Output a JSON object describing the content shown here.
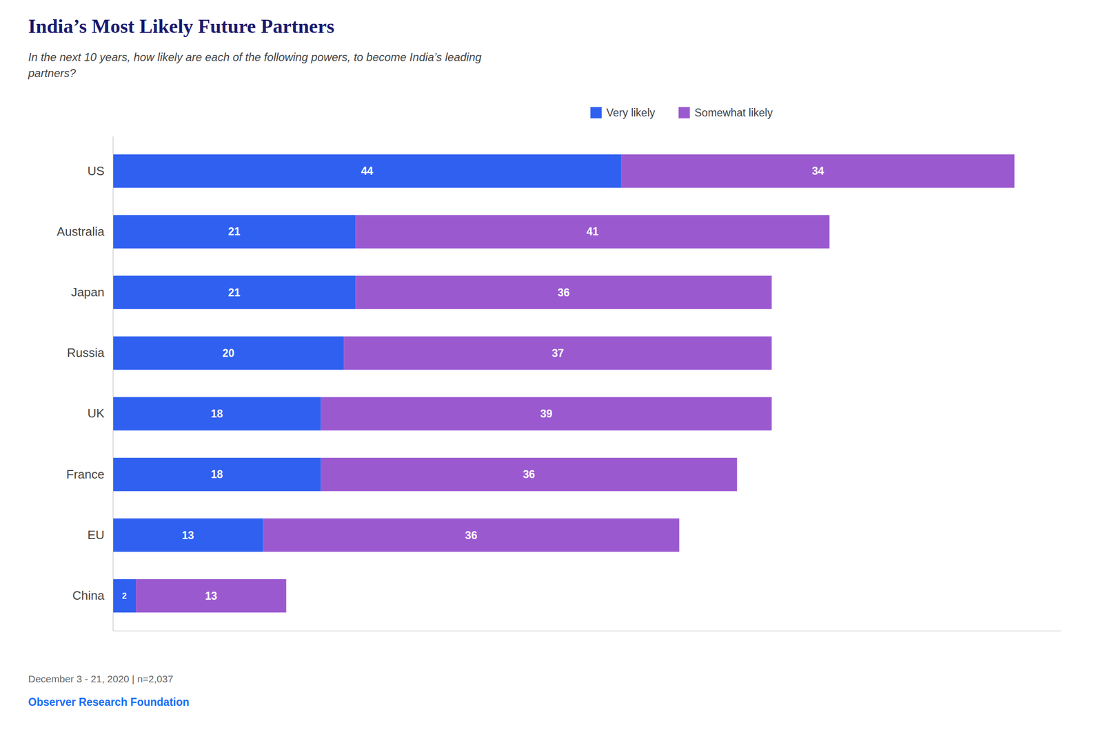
{
  "chart_data": {
    "type": "bar",
    "orientation": "horizontal",
    "stacked": true,
    "title": "India’s Most Likely Future Partners",
    "subtitle": "In the next 10 years, how likely are each of the following powers, to become India’s leading\npartners?",
    "categories": [
      "US",
      "Australia",
      "Japan",
      "Russia",
      "UK",
      "France",
      "EU",
      "China"
    ],
    "series": [
      {
        "name": "Very likely",
        "color": "#3060F0",
        "values": [
          44,
          21,
          21,
          20,
          18,
          18,
          13,
          2
        ]
      },
      {
        "name": "Somewhat likely",
        "color": "#9B59D0",
        "values": [
          34,
          41,
          36,
          37,
          39,
          36,
          36,
          13
        ]
      }
    ],
    "xlim": [
      0,
      82
    ],
    "tick_labels": "y",
    "grid": false,
    "legend": "top",
    "data_labels": true,
    "annotations": [
      "December 3 - 21, 2020 | n=2,037",
      "Observer Research Foundation"
    ]
  }
}
